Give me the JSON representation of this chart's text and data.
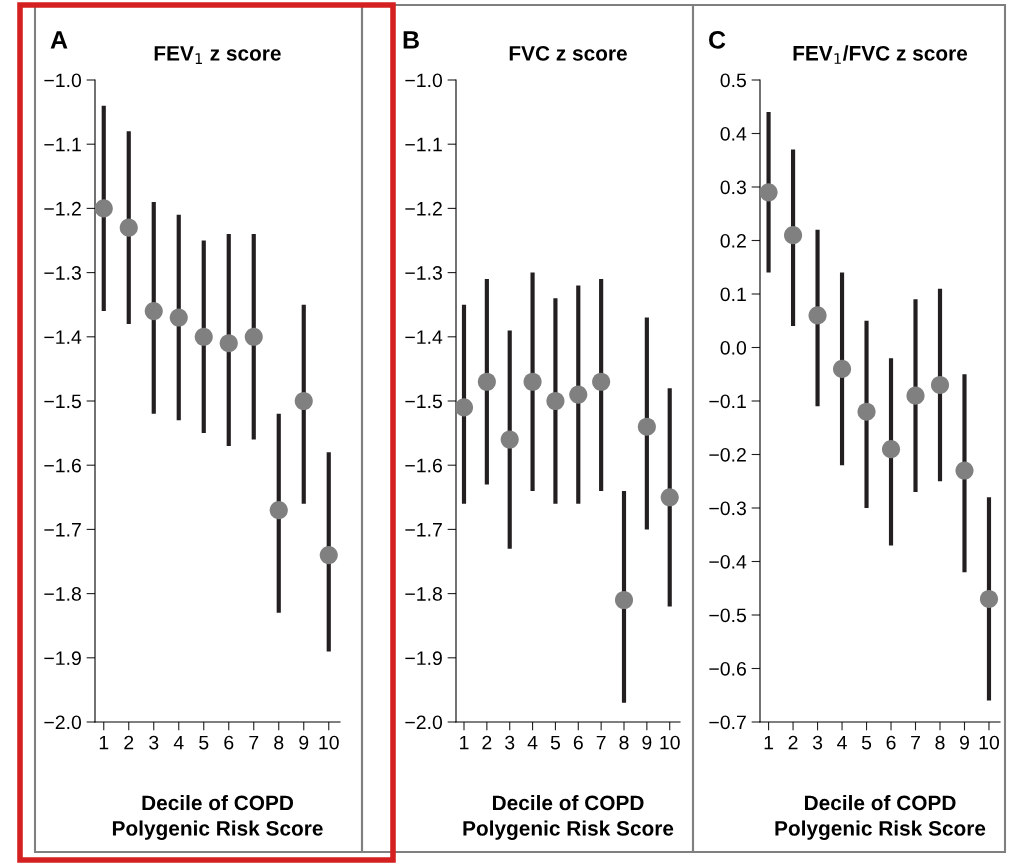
{
  "chart_data": [
    {
      "type": "scatter",
      "title": "FEV$_{1}$ z score",
      "xlabel": "Decile of COPD\nPolygenic Risk Score",
      "annotations": [
        "A"
      ],
      "categories": [
        "1",
        "2",
        "3",
        "4",
        "5",
        "6",
        "7",
        "8",
        "9",
        "10"
      ],
      "marker": "circle",
      "grid": false,
      "series": [
        {
          "color": "#808080",
          "values": [
            -1.2,
            -1.23,
            -1.36,
            -1.37,
            -1.4,
            -1.41,
            -1.4,
            -1.67,
            -1.5,
            -1.74
          ],
          "errors": [
            [
              -1.36,
              -1.04
            ],
            [
              -1.38,
              -1.08
            ],
            [
              -1.52,
              -1.19
            ],
            [
              -1.53,
              -1.21
            ],
            [
              -1.55,
              -1.25
            ],
            [
              -1.57,
              -1.24
            ],
            [
              -1.56,
              -1.24
            ],
            [
              -1.83,
              -1.52
            ],
            [
              -1.66,
              -1.35
            ],
            [
              -1.89,
              -1.58
            ]
          ]
        }
      ],
      "ylim": [
        -2.0,
        -1.0
      ],
      "yticks": [
        {
          "value": -2.0,
          "label": "−2.0"
        },
        {
          "value": -1.9,
          "label": "−1.9"
        },
        {
          "value": -1.8,
          "label": "−1.8"
        },
        {
          "value": -1.7,
          "label": "−1.7"
        },
        {
          "value": -1.6,
          "label": "−1.6"
        },
        {
          "value": -1.5,
          "label": "−1.5"
        },
        {
          "value": -1.4,
          "label": "−1.4"
        },
        {
          "value": -1.3,
          "label": "−1.3"
        },
        {
          "value": -1.2,
          "label": "−1.2"
        },
        {
          "value": -1.1,
          "label": "−1.1"
        },
        {
          "value": -1.0,
          "label": "−1.0"
        }
      ]
    },
    {
      "type": "scatter",
      "title": "FVC z score",
      "xlabel": "Decile of COPD\nPolygenic Risk Score",
      "annotations": [
        "B"
      ],
      "categories": [
        "1",
        "2",
        "3",
        "4",
        "5",
        "6",
        "7",
        "8",
        "9",
        "10"
      ],
      "marker": "circle",
      "grid": false,
      "series": [
        {
          "color": "#808080",
          "values": [
            -1.51,
            -1.47,
            -1.56,
            -1.47,
            -1.5,
            -1.49,
            -1.47,
            -1.81,
            -1.54,
            -1.65
          ],
          "errors": [
            [
              -1.66,
              -1.35
            ],
            [
              -1.63,
              -1.31
            ],
            [
              -1.73,
              -1.39
            ],
            [
              -1.64,
              -1.3
            ],
            [
              -1.66,
              -1.34
            ],
            [
              -1.66,
              -1.32
            ],
            [
              -1.64,
              -1.31
            ],
            [
              -1.97,
              -1.64
            ],
            [
              -1.7,
              -1.37
            ],
            [
              -1.82,
              -1.48
            ]
          ]
        }
      ],
      "ylim": [
        -2.0,
        -1.0
      ],
      "yticks": [
        {
          "value": -2.0,
          "label": "−2.0"
        },
        {
          "value": -1.9,
          "label": "−1.9"
        },
        {
          "value": -1.8,
          "label": "−1.8"
        },
        {
          "value": -1.7,
          "label": "−1.7"
        },
        {
          "value": -1.6,
          "label": "−1.6"
        },
        {
          "value": -1.5,
          "label": "−1.5"
        },
        {
          "value": -1.4,
          "label": "−1.4"
        },
        {
          "value": -1.3,
          "label": "−1.3"
        },
        {
          "value": -1.2,
          "label": "−1.2"
        },
        {
          "value": -1.1,
          "label": "−1.1"
        },
        {
          "value": -1.0,
          "label": "−1.0"
        }
      ]
    },
    {
      "type": "scatter",
      "title": "FEV$_{1}$/FVC z score",
      "xlabel": "Decile of COPD\nPolygenic Risk Score",
      "annotations": [
        "C"
      ],
      "categories": [
        "1",
        "2",
        "3",
        "4",
        "5",
        "6",
        "7",
        "8",
        "9",
        "10"
      ],
      "marker": "circle",
      "grid": false,
      "series": [
        {
          "color": "#808080",
          "values": [
            0.29,
            0.21,
            0.06,
            -0.04,
            -0.12,
            -0.19,
            -0.09,
            -0.07,
            -0.23,
            -0.47
          ],
          "errors": [
            [
              0.14,
              0.44
            ],
            [
              0.04,
              0.37
            ],
            [
              -0.11,
              0.22
            ],
            [
              -0.22,
              0.14
            ],
            [
              -0.3,
              0.05
            ],
            [
              -0.37,
              -0.02
            ],
            [
              -0.27,
              0.09
            ],
            [
              -0.25,
              0.11
            ],
            [
              -0.42,
              -0.05
            ],
            [
              -0.66,
              -0.28
            ]
          ]
        }
      ],
      "ylim": [
        -0.7,
        0.5
      ],
      "yticks": [
        {
          "value": -0.7,
          "label": "−0.7"
        },
        {
          "value": -0.6,
          "label": "−0.6"
        },
        {
          "value": -0.5,
          "label": "−0.5"
        },
        {
          "value": -0.4,
          "label": "−0.4"
        },
        {
          "value": -0.3,
          "label": "−0.3"
        },
        {
          "value": -0.2,
          "label": "−0.2"
        },
        {
          "value": -0.1,
          "label": "−0.1"
        },
        {
          "value": 0.0,
          "label": "0.0"
        },
        0.1,
        0.2,
        0.3,
        0.4,
        0.5
      ]
    }
  ]
}
